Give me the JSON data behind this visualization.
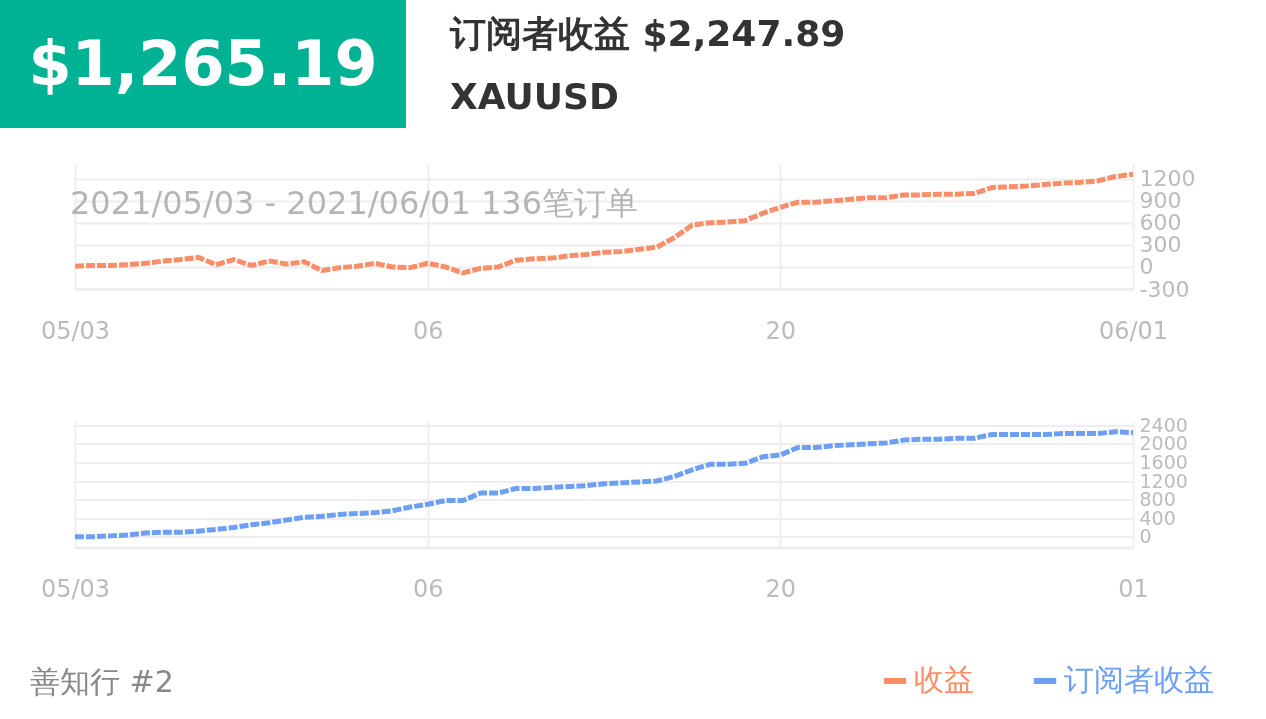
{
  "chart_data": [
    {
      "type": "line",
      "title": "$1,265.19",
      "subtitle": "订阅者收益 $2,247.89",
      "annotations": [
        "XAUUSD",
        "2021/05/03 - 2021/06/01  136笔订单",
        "善知行 #2"
      ],
      "categories": [
        "05/03",
        null,
        null,
        null,
        null,
        null,
        null,
        null,
        null,
        null,
        null,
        null,
        null,
        null,
        null,
        null,
        null,
        null,
        null,
        null,
        "06",
        null,
        null,
        null,
        null,
        null,
        null,
        null,
        null,
        null,
        null,
        null,
        null,
        null,
        null,
        null,
        null,
        null,
        null,
        null,
        "20",
        null,
        null,
        null,
        null,
        null,
        null,
        null,
        null,
        null,
        null,
        null,
        null,
        null,
        null,
        null,
        null,
        null,
        null,
        null,
        "06/01"
      ],
      "series": [
        {
          "name": "收益",
          "color": "#f98e68",
          "values": [
            10,
            20,
            20,
            30,
            50,
            80,
            100,
            130,
            30,
            100,
            20,
            80,
            40,
            70,
            -50,
            -10,
            10,
            50,
            0,
            -10,
            50,
            0,
            -80,
            -20,
            0,
            90,
            110,
            120,
            150,
            170,
            200,
            210,
            240,
            270,
            400,
            570,
            600,
            610,
            630,
            730,
            810,
            880,
            880,
            900,
            920,
            940,
            940,
            980,
            980,
            990,
            990,
            1000,
            1080,
            1090,
            1100,
            1120,
            1140,
            1150,
            1170,
            1230,
            1260
          ]
        }
      ],
      "ylim": [
        -300,
        1400
      ],
      "yticks": [
        -300,
        0,
        300,
        600,
        900,
        1200
      ],
      "grid": true,
      "legend": "bottom right",
      "line_style": "dashed"
    },
    {
      "type": "line",
      "categories": [
        "05/03",
        null,
        null,
        null,
        null,
        null,
        null,
        null,
        null,
        null,
        null,
        null,
        null,
        null,
        null,
        null,
        null,
        null,
        null,
        null,
        "06",
        null,
        null,
        null,
        null,
        null,
        null,
        null,
        null,
        null,
        null,
        null,
        null,
        null,
        null,
        null,
        null,
        null,
        null,
        null,
        "20",
        null,
        null,
        null,
        null,
        null,
        null,
        null,
        null,
        null,
        null,
        null,
        null,
        null,
        null,
        null,
        null,
        null,
        null,
        null,
        "01"
      ],
      "series": [
        {
          "name": "订阅者收益",
          "color": "#6d9ff5",
          "values": [
            0,
            0,
            20,
            40,
            80,
            100,
            100,
            120,
            160,
            200,
            260,
            300,
            360,
            420,
            440,
            480,
            500,
            520,
            560,
            640,
            700,
            780,
            780,
            940,
            940,
            1040,
            1040,
            1060,
            1080,
            1100,
            1140,
            1160,
            1180,
            1200,
            1300,
            1440,
            1560,
            1560,
            1580,
            1720,
            1760,
            1920,
            1920,
            1960,
            1980,
            2000,
            2020,
            2080,
            2100,
            2100,
            2120,
            2120,
            2200,
            2200,
            2200,
            2200,
            2220,
            2220,
            2220,
            2260,
            2240
          ]
        }
      ],
      "ylim": [
        -230,
        2480
      ],
      "yticks": [
        0,
        400,
        800,
        1200,
        1600,
        2000,
        2400
      ],
      "grid": true,
      "legend": "bottom right",
      "line_style": "dashed"
    }
  ]
}
